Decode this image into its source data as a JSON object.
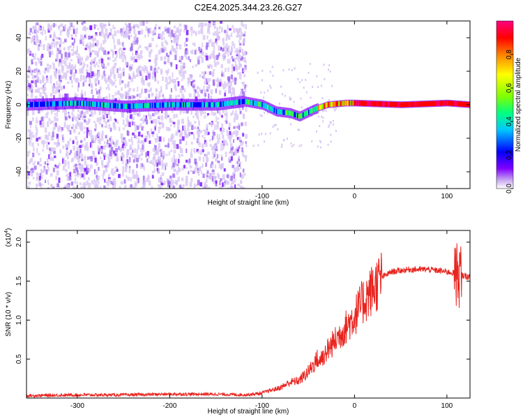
{
  "title": "C2E4.2025.344.23.26.G27",
  "chart_data": [
    {
      "type": "heatmap",
      "xlabel": "Height of straight line (km)",
      "ylabel": "Frequency (Hz)",
      "xlim": [
        -355,
        125
      ],
      "ylim": [
        -50,
        50
      ],
      "xticks": [
        -300,
        -200,
        -100,
        0,
        100
      ],
      "yticks": [
        -40,
        -20,
        0,
        20,
        40
      ],
      "xtick_labels": [
        "-300",
        "-200",
        "-100",
        "0",
        "100"
      ],
      "ytick_labels": [
        "-40",
        "-20",
        "0",
        "20",
        "40"
      ],
      "colorbar": {
        "label": "Normalized spectral amplitude",
        "range": [
          0,
          1
        ],
        "ticks": [
          0.0,
          0.2,
          0.4,
          0.6,
          0.8
        ],
        "tick_labels": [
          "0.0",
          "0.2",
          "0.4",
          "0.6",
          "0.8"
        ],
        "colors": [
          "#ffffff",
          "#c8a8f0",
          "#8000ff",
          "#0000ff",
          "#00c8ff",
          "#00ff80",
          "#80ff00",
          "#ffff00",
          "#ff8000",
          "#ff0000",
          "#ff0080"
        ]
      },
      "ridge": {
        "description_points": [
          {
            "x": -355,
            "f": 0
          },
          {
            "x": -300,
            "f": 1
          },
          {
            "x": -250,
            "f": -1
          },
          {
            "x": -200,
            "f": 0
          },
          {
            "x": -150,
            "f": 0
          },
          {
            "x": -120,
            "f": 2
          },
          {
            "x": -100,
            "f": 0
          },
          {
            "x": -85,
            "f": -4
          },
          {
            "x": -70,
            "f": -5
          },
          {
            "x": -60,
            "f": -7
          },
          {
            "x": -45,
            "f": -3
          },
          {
            "x": -30,
            "f": 0
          },
          {
            "x": -10,
            "f": 1
          },
          {
            "x": 0,
            "f": 1
          },
          {
            "x": 50,
            "f": 0
          },
          {
            "x": 100,
            "f": 1
          },
          {
            "x": 125,
            "f": 0
          }
        ]
      }
    },
    {
      "type": "line",
      "xlabel": "Height of straight line (km)",
      "ylabel": "SNR (10 * v/v)",
      "scale_label": "(x10",
      "scale_exponent": "4",
      "scale_suffix": ")",
      "xlim": [
        -355,
        125
      ],
      "ylim": [
        0,
        2.15
      ],
      "xticks": [
        -300,
        -200,
        -100,
        0,
        100
      ],
      "yticks": [
        0.5,
        1.0,
        1.5,
        2.0
      ],
      "xtick_labels": [
        "-300",
        "-200",
        "-100",
        "0",
        "100"
      ],
      "ytick_labels": [
        "0.5",
        "1.0",
        "1.5",
        "2.0"
      ],
      "color": "#e8231e",
      "series": [
        {
          "name": "SNR",
          "x": [
            -355,
            -300,
            -250,
            -200,
            -150,
            -120,
            -100,
            -80,
            -70,
            -60,
            -50,
            -40,
            -30,
            -20,
            -10,
            0,
            10,
            20,
            30,
            40,
            60,
            80,
            100,
            110,
            115,
            125
          ],
          "y": [
            0.03,
            0.04,
            0.04,
            0.05,
            0.05,
            0.04,
            0.06,
            0.12,
            0.18,
            0.2,
            0.3,
            0.45,
            0.6,
            0.75,
            0.9,
            1.05,
            1.25,
            1.4,
            1.55,
            1.62,
            1.65,
            1.65,
            1.62,
            1.6,
            1.58,
            1.55
          ]
        }
      ]
    }
  ]
}
